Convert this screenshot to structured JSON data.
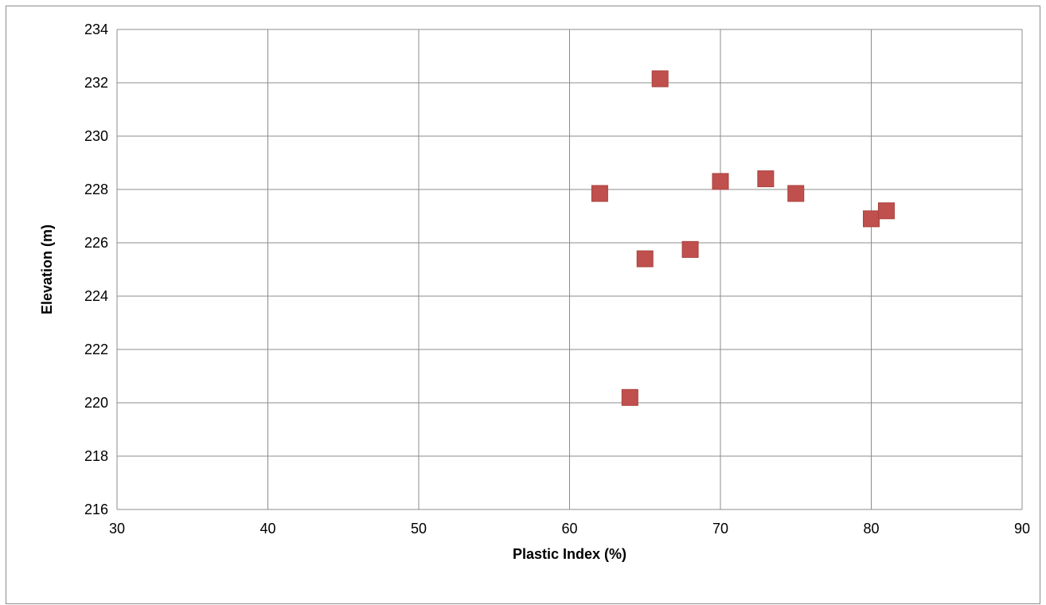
{
  "chart_data": {
    "type": "scatter",
    "title": "",
    "xlabel": "Plastic Index (%)",
    "ylabel": "Elevation (m)",
    "xlim": [
      30,
      90
    ],
    "ylim": [
      216,
      234
    ],
    "x_ticks": [
      30,
      40,
      50,
      60,
      70,
      80,
      90
    ],
    "y_ticks": [
      216,
      218,
      220,
      222,
      224,
      226,
      228,
      230,
      232,
      234
    ],
    "grid": true,
    "legend": "none",
    "marker": "square",
    "marker_color": "#c0504d",
    "series": [
      {
        "points": [
          {
            "x": 66,
            "y": 232.15
          },
          {
            "x": 62,
            "y": 227.85
          },
          {
            "x": 70,
            "y": 228.3
          },
          {
            "x": 73,
            "y": 228.4
          },
          {
            "x": 75,
            "y": 227.85
          },
          {
            "x": 80,
            "y": 226.9
          },
          {
            "x": 81,
            "y": 227.2
          },
          {
            "x": 65,
            "y": 225.4
          },
          {
            "x": 68,
            "y": 225.75
          },
          {
            "x": 64,
            "y": 220.2
          }
        ]
      }
    ]
  }
}
